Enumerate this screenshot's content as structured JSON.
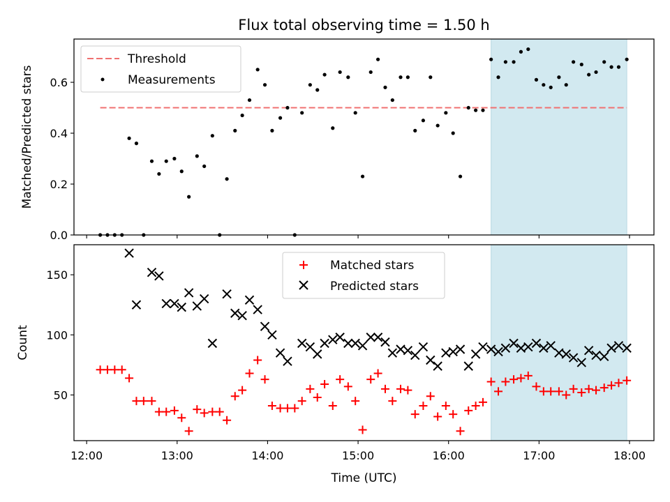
{
  "chart_data": [
    {
      "type": "scatter",
      "title": "Flux total observing time = 1.50 h",
      "xlabel": "",
      "ylabel": "Matched/Predicted stars",
      "xlim": [
        11.86,
        18.27
      ],
      "ylim": [
        0,
        0.77
      ],
      "x_ticks": [
        12,
        13,
        14,
        15,
        16,
        17,
        18
      ],
      "y_ticks": [
        0.0,
        0.2,
        0.4,
        0.6
      ],
      "y_tick_labels": [
        "0.0",
        "0.2",
        "0.4",
        "0.6"
      ],
      "shaded_region": {
        "x": [
          16.47,
          17.97
        ],
        "color": "#d2e9f0"
      },
      "legend": {
        "placement": "top-left"
      },
      "series": [
        {
          "name": "Threshold",
          "kind": "line",
          "style": "dashed",
          "color": "#f07070",
          "x": [
            12.15,
            17.97
          ],
          "y": [
            0.5,
            0.5
          ]
        },
        {
          "name": "Measurements",
          "kind": "scatter",
          "color": "#000000",
          "x": [
            12.15,
            12.23,
            12.31,
            12.39,
            12.47,
            12.55,
            12.63,
            12.72,
            12.8,
            12.88,
            12.97,
            13.05,
            13.13,
            13.22,
            13.3,
            13.39,
            13.47,
            13.55,
            13.64,
            13.72,
            13.8,
            13.89,
            13.97,
            14.05,
            14.14,
            14.22,
            14.3,
            14.38,
            14.47,
            14.55,
            14.63,
            14.72,
            14.8,
            14.89,
            14.97,
            15.05,
            15.14,
            15.22,
            15.3,
            15.38,
            15.47,
            15.55,
            15.63,
            15.72,
            15.8,
            15.88,
            15.97,
            16.05,
            16.13,
            16.22,
            16.3,
            16.38,
            16.47,
            16.55,
            16.63,
            16.72,
            16.8,
            16.88,
            16.97,
            17.05,
            17.13,
            17.22,
            17.3,
            17.38,
            17.47,
            17.55,
            17.63,
            17.72,
            17.8,
            17.88,
            17.97
          ],
          "y": [
            0.0,
            0.0,
            0.0,
            0.0,
            0.38,
            0.36,
            0.0,
            0.29,
            0.24,
            0.29,
            0.3,
            0.25,
            0.15,
            0.31,
            0.27,
            0.39,
            0.0,
            0.22,
            0.41,
            0.47,
            0.53,
            0.65,
            0.59,
            0.41,
            0.46,
            0.5,
            0.0,
            0.48,
            0.59,
            0.57,
            0.63,
            0.42,
            0.64,
            0.62,
            0.48,
            0.23,
            0.64,
            0.69,
            0.58,
            0.53,
            0.62,
            0.62,
            0.41,
            0.45,
            0.62,
            0.43,
            0.48,
            0.4,
            0.23,
            0.5,
            0.49,
            0.49,
            0.69,
            0.62,
            0.68,
            0.68,
            0.72,
            0.73,
            0.61,
            0.59,
            0.58,
            0.62,
            0.59,
            0.68,
            0.67,
            0.63,
            0.64,
            0.68,
            0.66,
            0.66,
            0.69
          ]
        }
      ]
    },
    {
      "type": "scatter",
      "title": "",
      "xlabel": "Time (UTC)",
      "ylabel": "Count",
      "xlim": [
        11.86,
        18.27
      ],
      "ylim": [
        12,
        175
      ],
      "x_ticks": [
        12,
        13,
        14,
        15,
        16,
        17,
        18
      ],
      "x_tick_labels": [
        "12:00",
        "13:00",
        "14:00",
        "15:00",
        "16:00",
        "17:00",
        "18:00"
      ],
      "y_ticks": [
        50,
        100,
        150
      ],
      "y_tick_labels": [
        "50",
        "100",
        "150"
      ],
      "shaded_region": {
        "x": [
          16.47,
          17.97
        ],
        "color": "#d2e9f0"
      },
      "legend": {
        "placement": "top-center"
      },
      "series": [
        {
          "name": "Matched stars",
          "kind": "plus",
          "color": "#ff0000",
          "x": [
            12.15,
            12.23,
            12.31,
            12.39,
            12.47,
            12.55,
            12.63,
            12.72,
            12.8,
            12.88,
            12.97,
            13.05,
            13.13,
            13.22,
            13.3,
            13.39,
            13.47,
            13.55,
            13.64,
            13.72,
            13.8,
            13.89,
            13.97,
            14.05,
            14.14,
            14.22,
            14.3,
            14.38,
            14.47,
            14.55,
            14.63,
            14.72,
            14.8,
            14.89,
            14.97,
            15.05,
            15.14,
            15.22,
            15.3,
            15.38,
            15.47,
            15.55,
            15.63,
            15.72,
            15.8,
            15.88,
            15.97,
            16.05,
            16.13,
            16.22,
            16.3,
            16.38,
            16.47,
            16.55,
            16.63,
            16.72,
            16.8,
            16.88,
            16.97,
            17.05,
            17.13,
            17.22,
            17.3,
            17.38,
            17.47,
            17.55,
            17.63,
            17.72,
            17.8,
            17.88,
            17.97
          ],
          "y": [
            71,
            71,
            71,
            71,
            64,
            45,
            45,
            45,
            36,
            36,
            37,
            31,
            20,
            38,
            35,
            36,
            36,
            29,
            49,
            54,
            68,
            79,
            63,
            41,
            39,
            39,
            39,
            45,
            55,
            48,
            59,
            41,
            63,
            57,
            45,
            21,
            63,
            68,
            55,
            45,
            55,
            54,
            34,
            41,
            49,
            32,
            41,
            34,
            20,
            37,
            41,
            44,
            61,
            53,
            61,
            63,
            64,
            66,
            57,
            53,
            53,
            53,
            50,
            55,
            52,
            55,
            54,
            56,
            58,
            60,
            62
          ]
        },
        {
          "name": "Predicted stars",
          "kind": "cross",
          "color": "#000000",
          "x": [
            12.47,
            12.55,
            12.72,
            12.8,
            12.88,
            12.97,
            13.05,
            13.13,
            13.22,
            13.3,
            13.39,
            13.55,
            13.64,
            13.72,
            13.8,
            13.89,
            13.97,
            14.05,
            14.14,
            14.22,
            14.38,
            14.47,
            14.55,
            14.63,
            14.72,
            14.8,
            14.89,
            14.97,
            15.05,
            15.14,
            15.22,
            15.3,
            15.38,
            15.47,
            15.55,
            15.63,
            15.72,
            15.8,
            15.88,
            15.97,
            16.05,
            16.13,
            16.22,
            16.3,
            16.38,
            16.47,
            16.55,
            16.63,
            16.72,
            16.8,
            16.88,
            16.97,
            17.05,
            17.13,
            17.22,
            17.3,
            17.38,
            17.47,
            17.55,
            17.63,
            17.72,
            17.8,
            17.88,
            17.97
          ],
          "y": [
            168,
            125,
            152,
            149,
            126,
            126,
            123,
            135,
            124,
            130,
            93,
            134,
            118,
            116,
            129,
            121,
            107,
            100,
            85,
            78,
            93,
            90,
            84,
            93,
            96,
            98,
            93,
            93,
            91,
            98,
            98,
            94,
            85,
            88,
            87,
            83,
            90,
            79,
            74,
            85,
            86,
            88,
            74,
            84,
            90,
            88,
            86,
            89,
            93,
            89,
            90,
            93,
            89,
            91,
            85,
            84,
            81,
            77,
            87,
            83,
            82,
            89,
            91,
            89
          ]
        }
      ]
    }
  ]
}
